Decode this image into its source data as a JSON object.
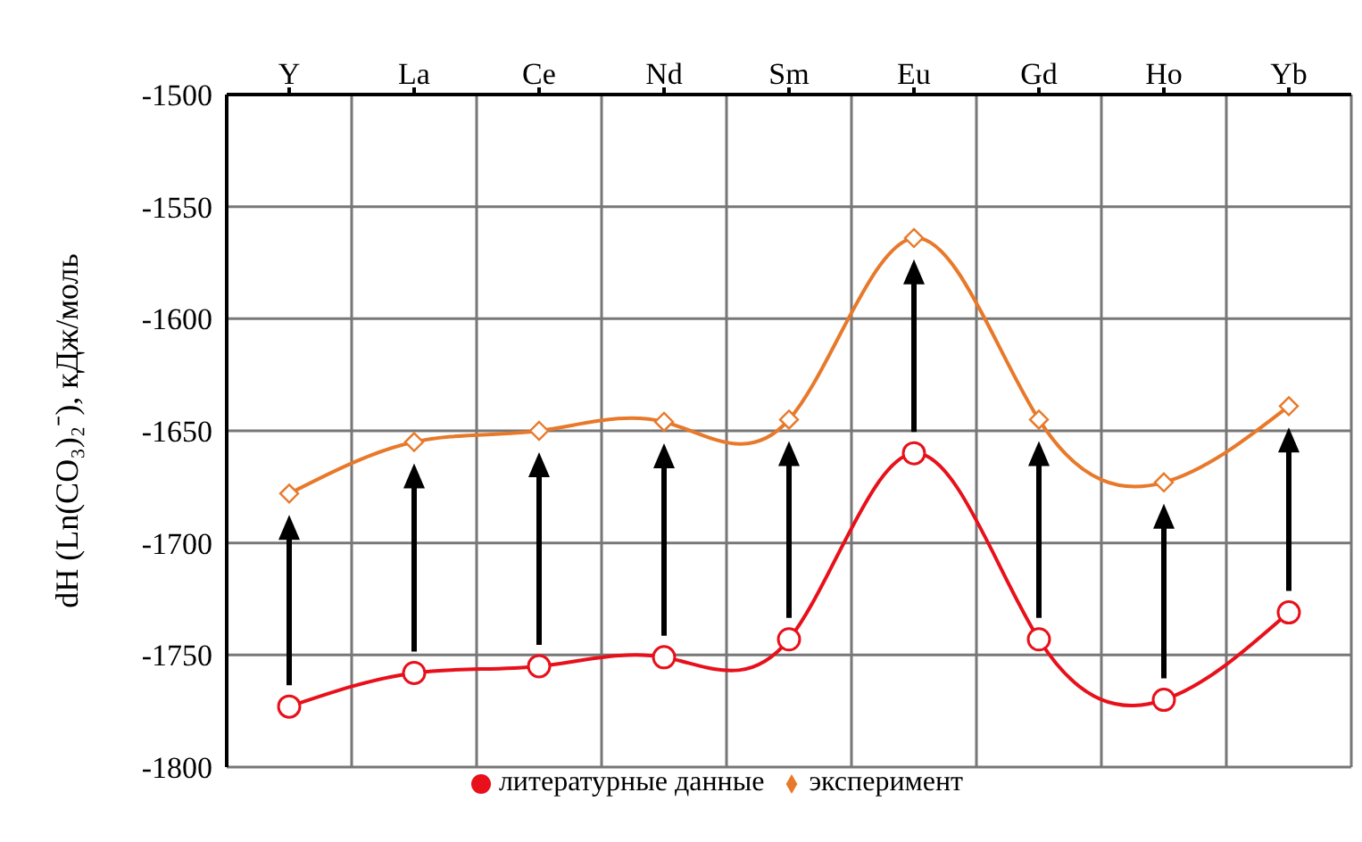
{
  "chart_data": {
    "type": "line",
    "ylabel": "dH (Ln(CO₃)₂⁻), кДж/моль",
    "categories": [
      "Y",
      "La",
      "Ce",
      "Nd",
      "Sm",
      "Eu",
      "Gd",
      "Ho",
      "Yb"
    ],
    "series": [
      {
        "name": "литературные данные",
        "color": "#e8101a",
        "marker": "circle",
        "values": [
          -1773,
          -1758,
          -1755,
          -1751,
          -1743,
          -1660,
          -1743,
          -1770,
          -1731
        ]
      },
      {
        "name": "эксперимент",
        "color": "#e8792a",
        "marker": "diamond",
        "values": [
          -1678,
          -1655,
          -1650,
          -1646,
          -1645,
          -1564,
          -1645,
          -1673,
          -1639
        ]
      }
    ],
    "ylim": [
      -1800,
      -1500
    ],
    "yticks": [
      -1800,
      -1750,
      -1700,
      -1650,
      -1600,
      -1550,
      -1500
    ],
    "grid": true,
    "legend": "bottom"
  }
}
